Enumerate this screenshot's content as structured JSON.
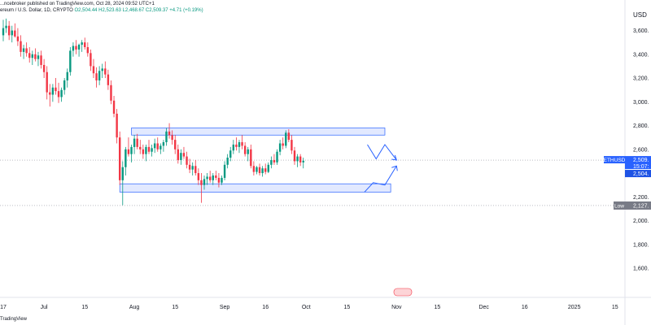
{
  "header": {
    "publisher": "...ncebroker published on TradingView.com, Oct 28, 2024 09:52 UTC+1",
    "symbol_line": "ereum / U.S. Dollar, 1D, CRYPTO",
    "ohlc": "O2,504.44  H2,523.63  L2,468.67  C2,509.37  +4.71 (+0.19%)"
  },
  "currency": "USD",
  "footer": "TradingView",
  "chart_data": {
    "type": "candlestick",
    "ylim": [
      1450,
      3720
    ],
    "y_ticks": [
      {
        "value": 3600,
        "label": "3,600."
      },
      {
        "value": 3400,
        "label": "3,400."
      },
      {
        "value": 3200,
        "label": "3,200."
      },
      {
        "value": 3000,
        "label": "3,000."
      },
      {
        "value": 2800,
        "label": "2,800."
      },
      {
        "value": 2600,
        "label": "2,600."
      },
      {
        "value": 2400,
        "label": "2,400."
      },
      {
        "value": 2200,
        "label": "2,200."
      },
      {
        "value": 2000,
        "label": "2,000."
      },
      {
        "value": 1800,
        "label": "1,800."
      },
      {
        "value": 1600,
        "label": "1,600."
      }
    ],
    "x_ticks": [
      {
        "day": 0,
        "label": "17"
      },
      {
        "day": 14,
        "label": "Jul"
      },
      {
        "day": 28,
        "label": "15"
      },
      {
        "day": 45,
        "label": "Aug"
      },
      {
        "day": 59,
        "label": "15"
      },
      {
        "day": 76,
        "label": "Sep"
      },
      {
        "day": 90,
        "label": "16"
      },
      {
        "day": 104,
        "label": "Oct"
      },
      {
        "day": 118,
        "label": "15"
      },
      {
        "day": 135,
        "label": "Nov"
      },
      {
        "day": 149,
        "label": "15"
      },
      {
        "day": 165,
        "label": "Dec"
      },
      {
        "day": 179,
        "label": "16"
      },
      {
        "day": 196,
        "label": "2025"
      },
      {
        "day": 210,
        "label": "15"
      }
    ],
    "candles": [
      [
        3560,
        3690,
        3510,
        3620
      ],
      [
        3620,
        3700,
        3580,
        3640
      ],
      [
        3640,
        3680,
        3520,
        3560
      ],
      [
        3560,
        3640,
        3500,
        3600
      ],
      [
        3600,
        3660,
        3540,
        3550
      ],
      [
        3550,
        3620,
        3470,
        3510
      ],
      [
        3510,
        3560,
        3380,
        3420
      ],
      [
        3420,
        3480,
        3360,
        3450
      ],
      [
        3450,
        3500,
        3380,
        3410
      ],
      [
        3410,
        3460,
        3330,
        3370
      ],
      [
        3370,
        3430,
        3310,
        3400
      ],
      [
        3400,
        3450,
        3340,
        3360
      ],
      [
        3360,
        3420,
        3300,
        3390
      ],
      [
        3390,
        3430,
        3280,
        3310
      ],
      [
        3310,
        3360,
        3200,
        3250
      ],
      [
        3250,
        3300,
        3020,
        3080
      ],
      [
        3080,
        3150,
        2960,
        3060
      ],
      [
        3060,
        3150,
        3000,
        3120
      ],
      [
        3120,
        3200,
        3060,
        3090
      ],
      [
        3090,
        3160,
        2990,
        3040
      ],
      [
        3040,
        3120,
        3000,
        3100
      ],
      [
        3100,
        3200,
        3060,
        3180
      ],
      [
        3180,
        3280,
        3120,
        3250
      ],
      [
        3250,
        3460,
        3220,
        3430
      ],
      [
        3430,
        3500,
        3380,
        3470
      ],
      [
        3470,
        3520,
        3400,
        3440
      ],
      [
        3440,
        3490,
        3380,
        3480
      ],
      [
        3480,
        3520,
        3420,
        3500
      ],
      [
        3500,
        3540,
        3440,
        3460
      ],
      [
        3460,
        3500,
        3380,
        3410
      ],
      [
        3410,
        3440,
        3260,
        3300
      ],
      [
        3300,
        3360,
        3200,
        3240
      ],
      [
        3240,
        3290,
        3120,
        3180
      ],
      [
        3180,
        3300,
        3140,
        3260
      ],
      [
        3260,
        3320,
        3200,
        3280
      ],
      [
        3280,
        3340,
        3200,
        3230
      ],
      [
        3230,
        3270,
        3100,
        3140
      ],
      [
        3140,
        3180,
        2980,
        3010
      ],
      [
        3010,
        3050,
        2870,
        2900
      ],
      [
        2900,
        2940,
        2650,
        2700
      ],
      [
        2700,
        2750,
        2300,
        2340
      ],
      [
        2340,
        2500,
        2130,
        2450
      ],
      [
        2450,
        2620,
        2380,
        2600
      ],
      [
        2600,
        2700,
        2540,
        2560
      ],
      [
        2560,
        2640,
        2490,
        2620
      ],
      [
        2620,
        2720,
        2560,
        2690
      ],
      [
        2690,
        2730,
        2600,
        2620
      ],
      [
        2620,
        2680,
        2560,
        2600
      ],
      [
        2600,
        2640,
        2520,
        2560
      ],
      [
        2560,
        2640,
        2500,
        2620
      ],
      [
        2620,
        2680,
        2560,
        2580
      ],
      [
        2580,
        2640,
        2540,
        2610
      ],
      [
        2610,
        2690,
        2570,
        2650
      ],
      [
        2650,
        2700,
        2580,
        2600
      ],
      [
        2600,
        2650,
        2560,
        2630
      ],
      [
        2630,
        2680,
        2580,
        2660
      ],
      [
        2660,
        2780,
        2630,
        2750
      ],
      [
        2750,
        2820,
        2690,
        2720
      ],
      [
        2720,
        2760,
        2640,
        2680
      ],
      [
        2680,
        2720,
        2560,
        2600
      ],
      [
        2600,
        2640,
        2480,
        2510
      ],
      [
        2510,
        2600,
        2470,
        2570
      ],
      [
        2570,
        2620,
        2520,
        2540
      ],
      [
        2540,
        2580,
        2440,
        2470
      ],
      [
        2470,
        2520,
        2400,
        2430
      ],
      [
        2430,
        2490,
        2380,
        2460
      ],
      [
        2460,
        2510,
        2380,
        2400
      ],
      [
        2400,
        2440,
        2300,
        2340
      ],
      [
        2340,
        2400,
        2150,
        2300
      ],
      [
        2300,
        2380,
        2260,
        2350
      ],
      [
        2350,
        2400,
        2300,
        2370
      ],
      [
        2370,
        2420,
        2320,
        2340
      ],
      [
        2340,
        2400,
        2300,
        2380
      ],
      [
        2380,
        2420,
        2340,
        2360
      ],
      [
        2360,
        2400,
        2280,
        2320
      ],
      [
        2320,
        2380,
        2300,
        2360
      ],
      [
        2360,
        2500,
        2340,
        2470
      ],
      [
        2470,
        2560,
        2440,
        2530
      ],
      [
        2530,
        2620,
        2500,
        2590
      ],
      [
        2590,
        2680,
        2560,
        2640
      ],
      [
        2640,
        2700,
        2590,
        2620
      ],
      [
        2620,
        2680,
        2570,
        2660
      ],
      [
        2660,
        2720,
        2600,
        2630
      ],
      [
        2630,
        2660,
        2540,
        2560
      ],
      [
        2560,
        2620,
        2500,
        2600
      ],
      [
        2600,
        2640,
        2440,
        2460
      ],
      [
        2460,
        2500,
        2380,
        2410
      ],
      [
        2410,
        2460,
        2390,
        2450
      ],
      [
        2450,
        2480,
        2380,
        2400
      ],
      [
        2400,
        2460,
        2370,
        2440
      ],
      [
        2440,
        2480,
        2390,
        2410
      ],
      [
        2410,
        2490,
        2400,
        2470
      ],
      [
        2470,
        2540,
        2440,
        2510
      ],
      [
        2510,
        2560,
        2470,
        2490
      ],
      [
        2490,
        2600,
        2470,
        2580
      ],
      [
        2580,
        2680,
        2550,
        2650
      ],
      [
        2650,
        2700,
        2600,
        2630
      ],
      [
        2630,
        2760,
        2610,
        2740
      ],
      [
        2740,
        2770,
        2660,
        2680
      ],
      [
        2680,
        2720,
        2560,
        2590
      ],
      [
        2590,
        2620,
        2470,
        2500
      ],
      [
        2500,
        2560,
        2450,
        2540
      ],
      [
        2540,
        2560,
        2460,
        2490
      ],
      [
        2490,
        2530,
        2440,
        2504
      ]
    ],
    "zones": [
      {
        "name": "resistance-zone",
        "from_day": 44,
        "to_day": 131,
        "low": 2720,
        "high": 2780
      },
      {
        "name": "support-zone",
        "from_day": 40,
        "to_day": 133,
        "low": 2240,
        "high": 2310
      }
    ],
    "low_line": {
      "value": 2127,
      "label": "Low",
      "price_label": "2,127."
    },
    "last_price": {
      "value": 2509.37,
      "symbol": "ETHUSD",
      "label": "2,509.",
      "countdown": "15:07:",
      "color": "#2962ff"
    },
    "prev_close": {
      "value": 2504.44,
      "label": "2,504.",
      "color": "#2962ff"
    },
    "projection_down": [
      [
        125,
        2640
      ],
      [
        128,
        2520
      ],
      [
        131,
        2640
      ],
      [
        135,
        2510
      ]
    ],
    "projection_up": [
      [
        124,
        2240
      ],
      [
        127,
        2320
      ],
      [
        131,
        2300
      ],
      [
        135,
        2460
      ]
    ],
    "colors": {
      "up": "#089981",
      "down": "#f23645",
      "zone_fill": "#d6e0ff",
      "zone_stroke": "#2962ff",
      "arrow": "#2962ff"
    },
    "grid": false
  }
}
